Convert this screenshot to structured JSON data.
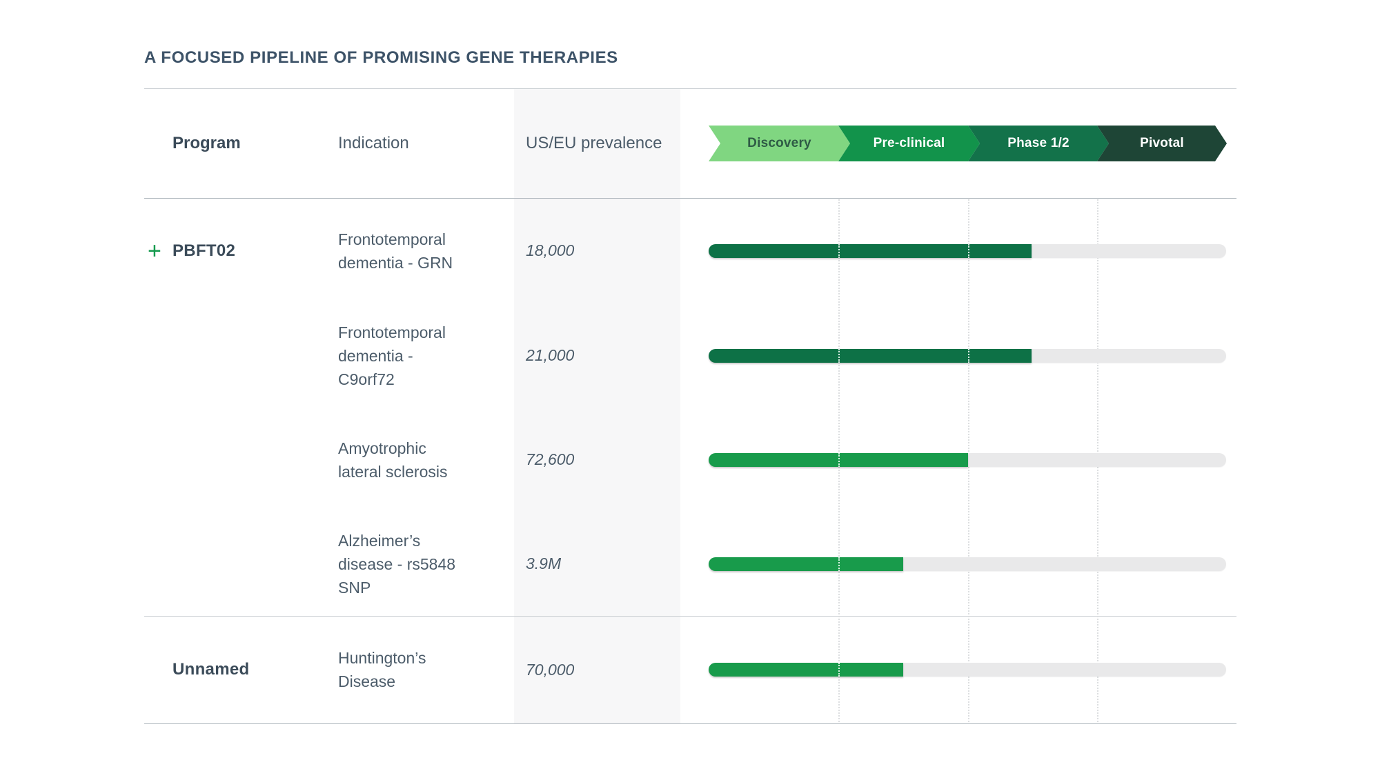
{
  "title": "A FOCUSED PIPELINE OF PROMISING GENE THERAPIES",
  "colors": {
    "title_text": "#3d5368",
    "body_text": "#4c5c6a",
    "program_text": "#3b4b59",
    "expander_green": "#159a4e",
    "bar_track": "#e9e9ea",
    "bar_dark_green": "#0d7146",
    "bar_medium_green": "#189b4b",
    "stripe_bg": "#f7f7f8"
  },
  "icons": {
    "expand": "+"
  },
  "table": {
    "columns": {
      "program": "Program",
      "indication": "Indication",
      "prevalence": "US/EU prevalence"
    },
    "groups": [
      {
        "program": "PBFT02",
        "has_expander": true,
        "rows": [
          {
            "indication": "Frontotemporal\ndementia - GRN",
            "prevalence": "18,000",
            "bar": {
              "fill_pct": 62.4,
              "color": "#0d7146",
              "phase_reached": "Phase 1/2"
            }
          },
          {
            "indication": "Frontotemporal\ndementia -\nC9orf72",
            "prevalence": "21,000",
            "bar": {
              "fill_pct": 62.4,
              "color": "#0d7146",
              "phase_reached": "Phase 1/2"
            }
          },
          {
            "indication": "Amyotrophic\nlateral sclerosis",
            "prevalence": "72,600",
            "bar": {
              "fill_pct": 50.1,
              "color": "#189b4b",
              "phase_reached": "Pre-clinical"
            }
          },
          {
            "indication": "Alzheimer’s\ndisease - rs5848\nSNP",
            "prevalence": "3.9M",
            "bar": {
              "fill_pct": 37.6,
              "color": "#189b4b",
              "phase_reached": "Pre-clinical"
            }
          }
        ]
      },
      {
        "program": "Unnamed",
        "has_expander": false,
        "rows": [
          {
            "indication": "Huntington’s\nDisease",
            "prevalence": "70,000",
            "bar": {
              "fill_pct": 37.6,
              "color": "#189b4b",
              "phase_reached": "Pre-clinical"
            }
          }
        ]
      }
    ]
  },
  "pipeline": {
    "phases": [
      {
        "label": "Discovery",
        "color": "#80d681",
        "text_color": "#2e5b45"
      },
      {
        "label": "Pre-clinical",
        "color": "#12934b",
        "text_color": "#ffffff"
      },
      {
        "label": "Phase 1/2",
        "color": "#13724a",
        "text_color": "#ffffff"
      },
      {
        "label": "Pivotal",
        "color": "#1e4536",
        "text_color": "#ffffff"
      }
    ]
  },
  "chart_data": {
    "type": "bar",
    "orientation": "horizontal",
    "title": "A FOCUSED PIPELINE OF PROMISING GENE THERAPIES",
    "phase_axis": [
      "Discovery",
      "Pre-clinical",
      "Phase 1/2",
      "Pivotal"
    ],
    "xlim_phase_units": [
      0,
      4
    ],
    "grid": "dotted vertical lines at phase boundaries",
    "legend_position": "none",
    "categories": [
      "PBFT02 — Frontotemporal dementia - GRN",
      "PBFT02 — Frontotemporal dementia - C9orf72",
      "PBFT02 — Amyotrophic lateral sclerosis",
      "PBFT02 — Alzheimer's disease - rs5848 SNP",
      "Unnamed — Huntington's Disease"
    ],
    "us_eu_prevalence": [
      "18,000",
      "21,000",
      "72,600",
      "3.9M",
      "70,000"
    ],
    "values_phase_units": [
      2.5,
      2.5,
      2.0,
      1.5,
      1.5
    ],
    "bar_colors": [
      "#0d7146",
      "#0d7146",
      "#189b4b",
      "#189b4b",
      "#189b4b"
    ]
  }
}
